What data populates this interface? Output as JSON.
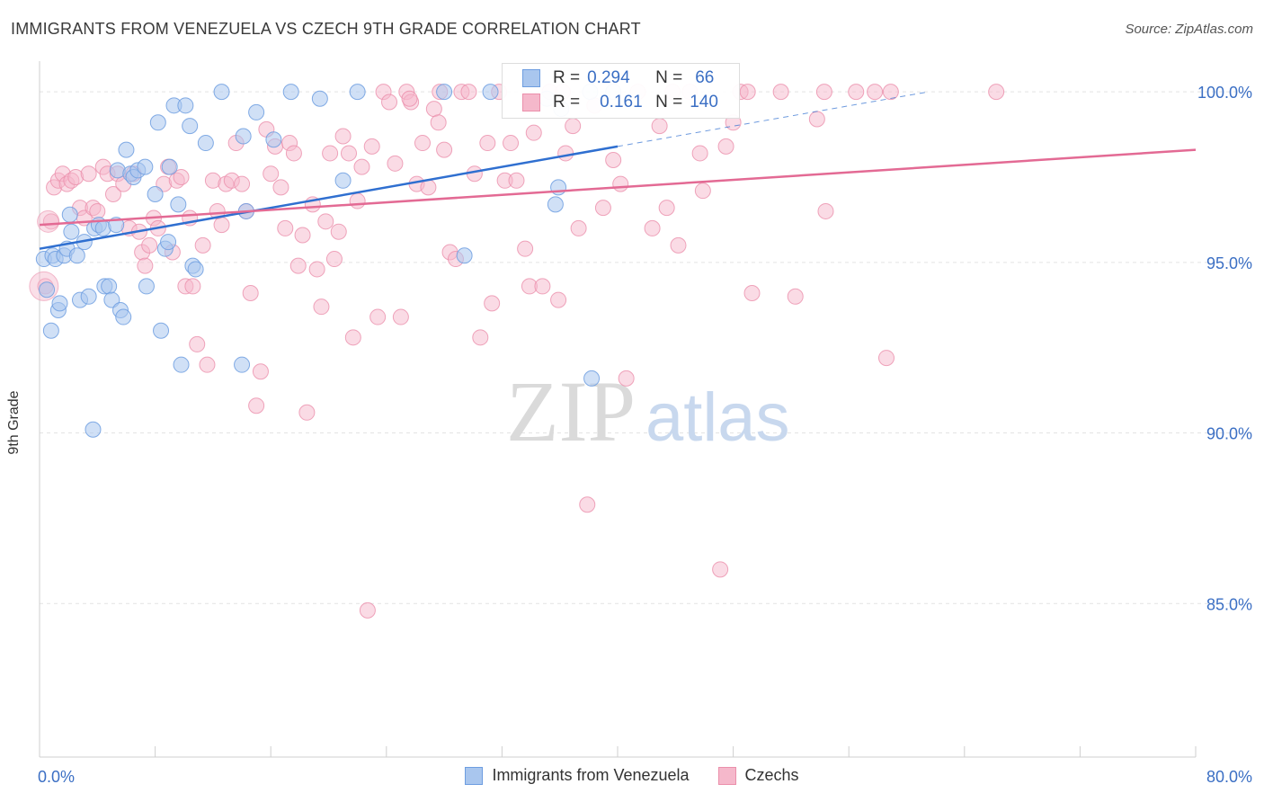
{
  "header": {
    "title": "IMMIGRANTS FROM VENEZUELA VS CZECH 9TH GRADE CORRELATION CHART",
    "source": "Source: ZipAtlas.com"
  },
  "legend": {
    "row1": {
      "r_label": "R =",
      "r_value": "0.294",
      "n_label": "N =",
      "n_value": "66"
    },
    "row2": {
      "r_label": "R =",
      "r_value": "0.161",
      "n_label": "N =",
      "n_value": "140"
    }
  },
  "bottom_legend": {
    "series1": "Immigrants from Venezuela",
    "series2": "Czechs"
  },
  "watermark": {
    "zip": "ZIP",
    "atlas": "atlas"
  },
  "colors": {
    "blue_fill": "#a9c6ee",
    "blue_stroke": "#6d9de0",
    "blue_line": "#2f6fd0",
    "pink_fill": "#f5b8cb",
    "pink_stroke": "#eb8fab",
    "pink_line": "#e36a94",
    "grid": "#e3e3e3",
    "tick_label": "#3b6fc4"
  },
  "chart_data": {
    "type": "scatter",
    "title": "IMMIGRANTS FROM VENEZUELA VS CZECH 9TH GRADE CORRELATION CHART",
    "xlabel": "",
    "ylabel": "9th Grade",
    "xlim": [
      0,
      80
    ],
    "ylim": [
      80.5,
      100.9
    ],
    "x_tick_labels": [
      "0.0%",
      "80.0%"
    ],
    "y_ticks": [
      85,
      90,
      95,
      100
    ],
    "y_tick_labels": [
      "85.0%",
      "90.0%",
      "95.0%",
      "100.0%"
    ],
    "series": [
      {
        "name": "Immigrants from Venezuela",
        "R": 0.294,
        "N": 66,
        "trend": {
          "x0": 0,
          "y0": 95.4,
          "x1": 40,
          "y1": 98.4,
          "dash_x1": 61.5,
          "dash_y1": 100.0
        },
        "points": [
          [
            0.3,
            95.1
          ],
          [
            0.5,
            94.2
          ],
          [
            0.8,
            93.0
          ],
          [
            0.9,
            95.2
          ],
          [
            1.1,
            95.1
          ],
          [
            1.3,
            93.6
          ],
          [
            1.4,
            93.8
          ],
          [
            1.7,
            95.2
          ],
          [
            1.9,
            95.4
          ],
          [
            2.1,
            96.4
          ],
          [
            2.2,
            95.9
          ],
          [
            2.6,
            95.2
          ],
          [
            2.8,
            93.9
          ],
          [
            3.1,
            95.6
          ],
          [
            3.4,
            94.0
          ],
          [
            3.7,
            90.1
          ],
          [
            3.8,
            96.0
          ],
          [
            4.1,
            96.1
          ],
          [
            4.4,
            96.0
          ],
          [
            4.5,
            94.3
          ],
          [
            4.8,
            94.3
          ],
          [
            5.0,
            93.9
          ],
          [
            5.3,
            96.1
          ],
          [
            5.4,
            97.7
          ],
          [
            5.6,
            93.6
          ],
          [
            5.8,
            93.4
          ],
          [
            6.0,
            98.3
          ],
          [
            6.3,
            97.6
          ],
          [
            6.5,
            97.5
          ],
          [
            6.8,
            97.7
          ],
          [
            7.3,
            97.8
          ],
          [
            7.4,
            94.3
          ],
          [
            8.0,
            97.0
          ],
          [
            8.2,
            99.1
          ],
          [
            8.4,
            93.0
          ],
          [
            8.7,
            95.4
          ],
          [
            8.9,
            95.6
          ],
          [
            9.0,
            97.8
          ],
          [
            9.3,
            99.6
          ],
          [
            9.6,
            96.7
          ],
          [
            9.8,
            92.0
          ],
          [
            10.1,
            99.6
          ],
          [
            10.4,
            99.0
          ],
          [
            10.6,
            94.9
          ],
          [
            10.8,
            94.8
          ],
          [
            11.5,
            98.5
          ],
          [
            12.6,
            100.0
          ],
          [
            14.0,
            92.0
          ],
          [
            14.1,
            98.7
          ],
          [
            14.3,
            96.5
          ],
          [
            15.0,
            99.4
          ],
          [
            16.2,
            98.6
          ],
          [
            17.4,
            100.0
          ],
          [
            19.4,
            99.8
          ],
          [
            21.0,
            97.4
          ],
          [
            22.0,
            100.0
          ],
          [
            29.4,
            95.2
          ],
          [
            35.7,
            96.7
          ],
          [
            35.9,
            97.2
          ],
          [
            35.1,
            99.8
          ],
          [
            38.1,
            100.0
          ],
          [
            38.2,
            91.6
          ],
          [
            39.7,
            100.0
          ],
          [
            28.0,
            100.0
          ],
          [
            36.1,
            99.5
          ],
          [
            31.2,
            100.0
          ]
        ]
      },
      {
        "name": "Czechs",
        "R": 0.161,
        "N": 140,
        "trend": {
          "x0": 0,
          "y0": 96.1,
          "x1": 80,
          "y1": 98.3
        },
        "points": [
          [
            0.4,
            94.3
          ],
          [
            0.8,
            96.2
          ],
          [
            1.0,
            97.2
          ],
          [
            1.3,
            97.4
          ],
          [
            1.6,
            97.6
          ],
          [
            1.9,
            97.3
          ],
          [
            2.2,
            97.4
          ],
          [
            2.5,
            97.5
          ],
          [
            2.8,
            96.6
          ],
          [
            3.1,
            96.3
          ],
          [
            3.4,
            97.6
          ],
          [
            3.7,
            96.6
          ],
          [
            4.0,
            96.5
          ],
          [
            4.4,
            97.8
          ],
          [
            4.7,
            97.6
          ],
          [
            5.1,
            97.0
          ],
          [
            5.4,
            97.6
          ],
          [
            5.8,
            97.3
          ],
          [
            6.2,
            96.0
          ],
          [
            6.5,
            97.6
          ],
          [
            6.9,
            95.9
          ],
          [
            7.1,
            95.3
          ],
          [
            7.3,
            94.9
          ],
          [
            7.6,
            95.5
          ],
          [
            7.9,
            96.3
          ],
          [
            8.2,
            96.0
          ],
          [
            8.6,
            97.3
          ],
          [
            8.9,
            97.8
          ],
          [
            9.2,
            95.3
          ],
          [
            9.5,
            97.4
          ],
          [
            9.8,
            97.5
          ],
          [
            10.1,
            94.3
          ],
          [
            10.4,
            96.3
          ],
          [
            10.6,
            94.3
          ],
          [
            10.9,
            92.6
          ],
          [
            11.3,
            95.5
          ],
          [
            11.6,
            92.0
          ],
          [
            12.0,
            97.4
          ],
          [
            12.3,
            96.5
          ],
          [
            12.6,
            96.1
          ],
          [
            12.9,
            97.3
          ],
          [
            13.3,
            97.4
          ],
          [
            13.6,
            98.5
          ],
          [
            14.0,
            97.3
          ],
          [
            14.3,
            96.5
          ],
          [
            14.6,
            94.1
          ],
          [
            15.0,
            90.8
          ],
          [
            15.3,
            91.8
          ],
          [
            15.7,
            98.9
          ],
          [
            16.0,
            97.6
          ],
          [
            16.3,
            98.4
          ],
          [
            16.7,
            97.2
          ],
          [
            17.0,
            96.0
          ],
          [
            17.3,
            98.5
          ],
          [
            17.6,
            98.2
          ],
          [
            17.9,
            94.9
          ],
          [
            18.2,
            95.8
          ],
          [
            18.5,
            90.6
          ],
          [
            18.9,
            96.7
          ],
          [
            19.2,
            94.8
          ],
          [
            19.5,
            93.7
          ],
          [
            19.8,
            96.2
          ],
          [
            20.1,
            98.2
          ],
          [
            20.4,
            95.1
          ],
          [
            20.7,
            95.9
          ],
          [
            21.0,
            98.7
          ],
          [
            21.4,
            98.2
          ],
          [
            21.7,
            92.8
          ],
          [
            22.0,
            96.8
          ],
          [
            22.3,
            97.8
          ],
          [
            22.7,
            84.8
          ],
          [
            23.0,
            98.4
          ],
          [
            23.4,
            93.4
          ],
          [
            23.8,
            100.0
          ],
          [
            24.2,
            99.7
          ],
          [
            24.6,
            97.9
          ],
          [
            25.0,
            93.4
          ],
          [
            25.4,
            100.0
          ],
          [
            25.7,
            99.7
          ],
          [
            26.1,
            97.3
          ],
          [
            26.5,
            98.5
          ],
          [
            26.9,
            97.2
          ],
          [
            27.3,
            99.5
          ],
          [
            27.6,
            99.1
          ],
          [
            28.0,
            98.3
          ],
          [
            28.4,
            95.3
          ],
          [
            28.8,
            95.1
          ],
          [
            29.2,
            100.0
          ],
          [
            29.7,
            100.0
          ],
          [
            30.1,
            97.6
          ],
          [
            30.5,
            92.8
          ],
          [
            31.0,
            98.5
          ],
          [
            31.3,
            93.8
          ],
          [
            31.8,
            100.0
          ],
          [
            32.2,
            97.4
          ],
          [
            32.6,
            98.5
          ],
          [
            33.0,
            97.4
          ],
          [
            33.6,
            95.4
          ],
          [
            33.9,
            94.3
          ],
          [
            34.2,
            98.8
          ],
          [
            34.8,
            94.3
          ],
          [
            35.3,
            100.0
          ],
          [
            35.9,
            93.9
          ],
          [
            36.4,
            98.2
          ],
          [
            36.9,
            99.0
          ],
          [
            37.3,
            96.0
          ],
          [
            37.9,
            87.9
          ],
          [
            38.4,
            99.6
          ],
          [
            39.0,
            96.6
          ],
          [
            39.7,
            98.0
          ],
          [
            40.2,
            97.3
          ],
          [
            40.6,
            91.6
          ],
          [
            41.4,
            100.0
          ],
          [
            42.4,
            96.0
          ],
          [
            42.9,
            99.0
          ],
          [
            43.4,
            96.6
          ],
          [
            44.2,
            95.5
          ],
          [
            45.0,
            100.0
          ],
          [
            45.7,
            98.2
          ],
          [
            45.9,
            97.1
          ],
          [
            47.1,
            86.0
          ],
          [
            47.5,
            98.4
          ],
          [
            48.5,
            100.0
          ],
          [
            49.3,
            94.1
          ],
          [
            51.3,
            100.0
          ],
          [
            52.3,
            94.0
          ],
          [
            53.8,
            99.2
          ],
          [
            54.4,
            96.5
          ],
          [
            54.3,
            100.0
          ],
          [
            56.5,
            100.0
          ],
          [
            57.8,
            100.0
          ],
          [
            58.6,
            92.2
          ],
          [
            58.9,
            100.0
          ],
          [
            66.2,
            100.0
          ],
          [
            49.0,
            100.0
          ],
          [
            43.8,
            100.0
          ],
          [
            36.2,
            100.0
          ],
          [
            27.7,
            100.0
          ],
          [
            25.6,
            99.8
          ],
          [
            48.0,
            99.1
          ]
        ]
      }
    ]
  }
}
